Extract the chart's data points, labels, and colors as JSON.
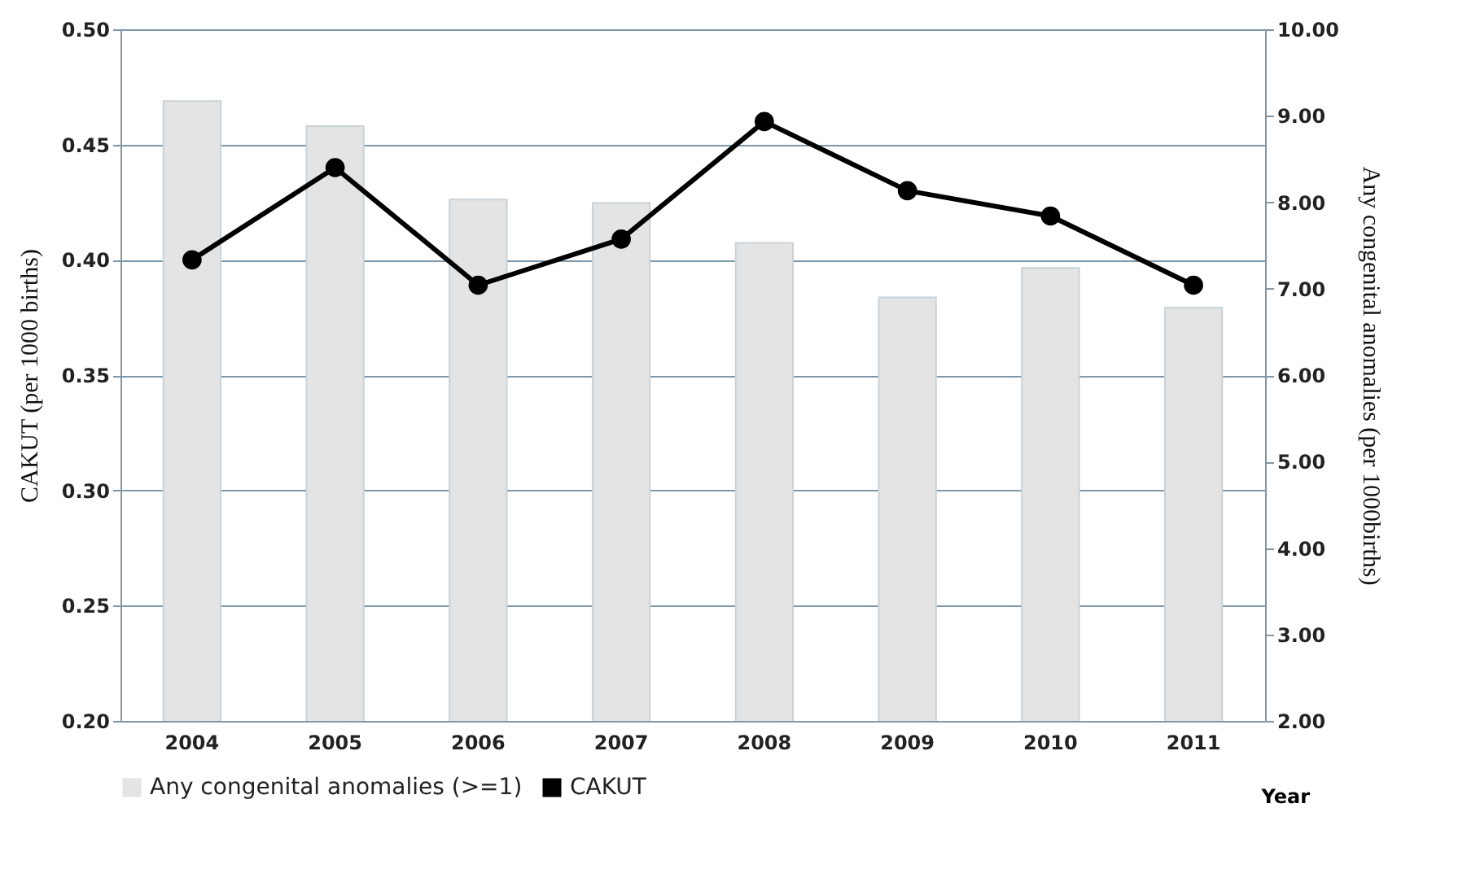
{
  "chart_data": {
    "type": "bar",
    "xlabel": "Year",
    "ylabel": "CAKUT (per 1000 births)",
    "y2label": "Any congenital anomalies (per 1000births)",
    "categories": [
      "2004",
      "2005",
      "2006",
      "2007",
      "2008",
      "2009",
      "2010",
      "2011"
    ],
    "series": [
      {
        "name": "Any congenital anomalies (>=1)",
        "axis": "y2",
        "color": "#e4e4e4",
        "values": [
          9.17,
          8.88,
          8.03,
          7.99,
          7.53,
          6.9,
          7.24,
          6.78
        ]
      },
      {
        "name": "CAKUT",
        "type": "line",
        "axis": "y",
        "color": "#000000",
        "marker": "circle",
        "values": [
          0.4,
          0.44,
          0.389,
          0.409,
          0.46,
          0.43,
          0.419,
          0.389
        ]
      }
    ],
    "ylim": [
      0.2,
      0.5
    ],
    "yticks": [
      {
        "value": 0.2,
        "label": "0.20"
      },
      {
        "value": 0.25,
        "label": "0.25"
      },
      {
        "value": 0.3,
        "label": "0.30"
      },
      {
        "value": 0.35,
        "label": "0.35"
      },
      {
        "value": 0.4,
        "label": "0.40"
      },
      {
        "value": 0.45,
        "label": "0.45"
      },
      {
        "value": 0.5,
        "label": "0.50"
      }
    ],
    "y2lim": [
      2,
      10
    ],
    "y2ticks": [
      {
        "value": 2,
        "label": "2.00"
      },
      {
        "value": 3,
        "label": "3.00"
      },
      {
        "value": 4,
        "label": "4.00"
      },
      {
        "value": 5,
        "label": "5.00"
      },
      {
        "value": 6,
        "label": "6.00"
      },
      {
        "value": 7,
        "label": "7.00"
      },
      {
        "value": 8,
        "label": "8.00"
      },
      {
        "value": 9,
        "label": "9.00"
      },
      {
        "value": 10,
        "label": "10.00"
      }
    ],
    "grid": "y",
    "legend": "bottom"
  }
}
